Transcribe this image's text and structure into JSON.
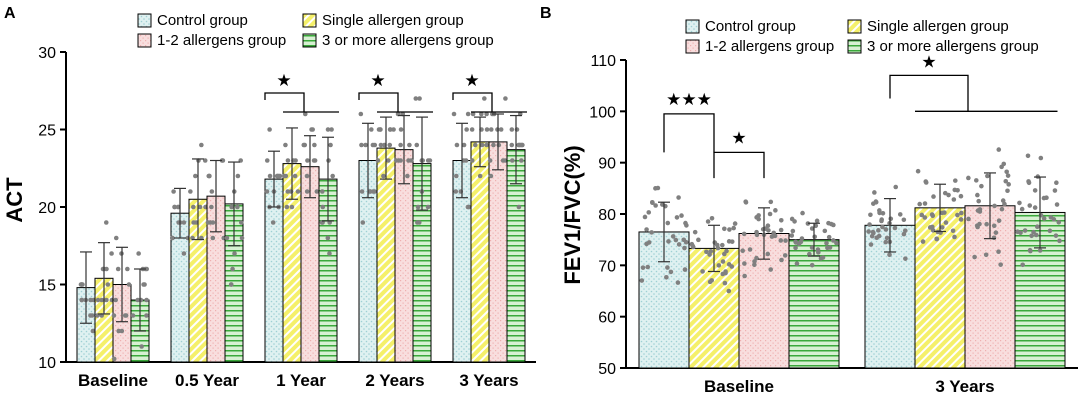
{
  "chart_data": [
    {
      "panel": "A",
      "type": "bar",
      "ylabel": "ACT",
      "xlabel": "",
      "ylim": [
        10,
        30
      ],
      "yticks": [
        "10",
        "15",
        "20",
        "25",
        "30"
      ],
      "categories": [
        "Baseline",
        "0.5 Year",
        "1 Year",
        "2 Years",
        "3 Years"
      ],
      "series": [
        {
          "name": "Control group",
          "values": [
            14.8,
            19.6,
            21.8,
            23.0,
            23.0
          ],
          "sd": [
            2.3,
            1.6,
            1.8,
            2.4,
            2.4
          ]
        },
        {
          "name": "Single allergen group",
          "values": [
            15.4,
            20.5,
            22.8,
            23.8,
            24.2
          ],
          "sd": [
            2.3,
            2.6,
            2.3,
            2.0,
            1.6
          ]
        },
        {
          "name": "1-2 allergens group",
          "values": [
            15.0,
            20.7,
            22.6,
            23.7,
            24.2
          ],
          "sd": [
            2.4,
            2.3,
            2.0,
            2.2,
            1.8
          ]
        },
        {
          "name": "3 or more allergens group",
          "values": [
            14.0,
            20.2,
            21.8,
            22.8,
            23.7
          ],
          "sd": [
            2.0,
            2.7,
            2.7,
            3.0,
            2.2
          ]
        }
      ],
      "annotations": [
        {
          "label": "★",
          "category": "1 Year"
        },
        {
          "label": "★",
          "category": "2 Years"
        },
        {
          "label": "★",
          "category": "3 Years"
        }
      ],
      "legend_position": "top"
    },
    {
      "panel": "B",
      "type": "bar",
      "ylabel": "FEV1/FVC(%)",
      "xlabel": "",
      "ylim": [
        50,
        110
      ],
      "yticks": [
        "50",
        "60",
        "70",
        "80",
        "90",
        "100",
        "110"
      ],
      "categories": [
        "Baseline",
        "3 Years"
      ],
      "series": [
        {
          "name": "Control group",
          "values": [
            76.5,
            77.8
          ],
          "sd": [
            5.8,
            5.2
          ]
        },
        {
          "name": "Single allergen group",
          "values": [
            73.3,
            81.2
          ],
          "sd": [
            4.5,
            4.6
          ]
        },
        {
          "name": "1-2 allergens group",
          "values": [
            76.2,
            81.6
          ],
          "sd": [
            5.0,
            6.4
          ]
        },
        {
          "name": "3 or more allergens group",
          "values": [
            75.0,
            80.3
          ],
          "sd": [
            3.2,
            6.9
          ]
        }
      ],
      "annotations": [
        {
          "label": "★★★",
          "category": "Baseline",
          "between": [
            "Control group",
            "Single allergen group"
          ]
        },
        {
          "label": "★",
          "category": "Baseline",
          "between": [
            "Single allergen group",
            "1-2 allergens group"
          ]
        },
        {
          "label": "★",
          "category": "3 Years"
        }
      ],
      "legend_position": "top"
    }
  ],
  "colors": {
    "control": "#dff1f1",
    "single": "#f5f06a",
    "onetwo": "#f8dede",
    "three": "#d7f0d2",
    "control_pattern": "#9fd0d4",
    "single_pattern": "#ffffff",
    "onetwo_pattern": "#eeb0b0",
    "three_pattern": "#3aa83a",
    "dots": "#808080",
    "axis": "#000000"
  },
  "legend": [
    "Control group",
    "Single allergen group",
    "1-2 allergens group",
    "3 or more allergens group"
  ]
}
